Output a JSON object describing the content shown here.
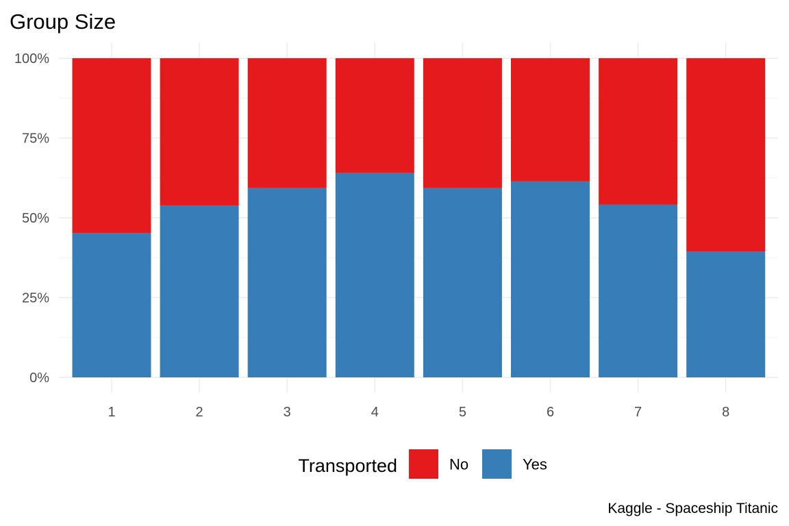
{
  "chart_data": {
    "type": "bar",
    "stacked": "percent",
    "title": "Group Size",
    "caption": "Kaggle - Spaceship Titanic",
    "xlabel": "",
    "ylabel": "",
    "categories": [
      "1",
      "2",
      "3",
      "4",
      "5",
      "6",
      "7",
      "8"
    ],
    "ylim": [
      0,
      1
    ],
    "y_ticks": [
      {
        "value": 0,
        "label": "0%"
      },
      {
        "value": 0.25,
        "label": "25%"
      },
      {
        "value": 0.5,
        "label": "50%"
      },
      {
        "value": 0.75,
        "label": "75%"
      },
      {
        "value": 1,
        "label": "100%"
      }
    ],
    "grid": true,
    "legend": {
      "title": "Transported",
      "position": "bottom"
    },
    "series": [
      {
        "name": "Yes",
        "color": "#377eb8",
        "values": [
          0.452,
          0.538,
          0.593,
          0.64,
          0.593,
          0.614,
          0.541,
          0.394
        ]
      },
      {
        "name": "No",
        "color": "#e41a1c",
        "values": [
          0.548,
          0.462,
          0.407,
          0.36,
          0.407,
          0.386,
          0.459,
          0.606
        ]
      }
    ],
    "legend_order": [
      "No",
      "Yes"
    ]
  }
}
